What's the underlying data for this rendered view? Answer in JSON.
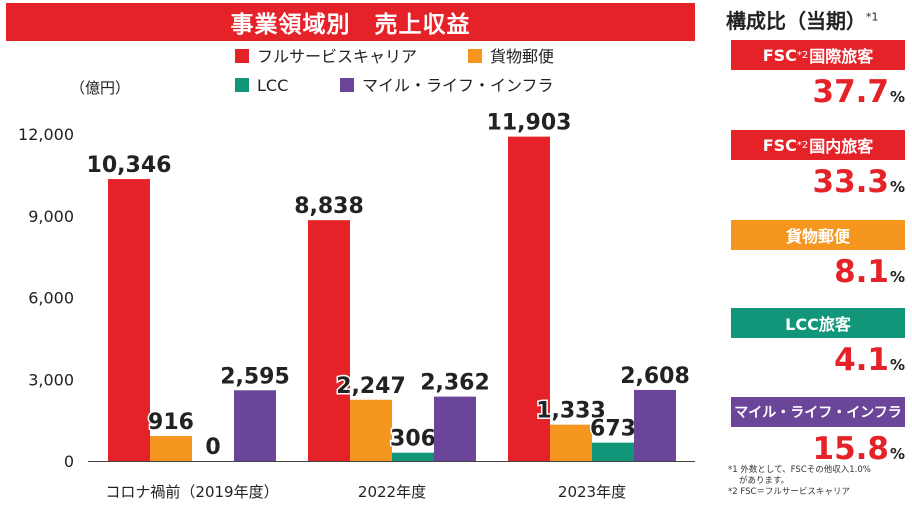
{
  "chart_data": {
    "type": "bar",
    "title": "事業領域別　売上収益",
    "ylabel": "（億円）",
    "ylim": [
      0,
      12000
    ],
    "yticks": [
      "0",
      "3,000",
      "6,000",
      "9,000",
      "12,000"
    ],
    "yticks_values": [
      0,
      3000,
      6000,
      9000,
      12000
    ],
    "categories": [
      "コロナ禍前（2019年度）",
      "2022年度",
      "2023年度"
    ],
    "legend_position": "top",
    "grid": false,
    "series": [
      {
        "name": "フルサービスキャリア",
        "color": "#e62229",
        "values": [
          10346,
          8838,
          11903
        ],
        "labels": [
          "10,346",
          "8,838",
          "11,903"
        ]
      },
      {
        "name": "貨物郵便",
        "color": "#f5961e",
        "values": [
          916,
          2247,
          1333
        ],
        "labels": [
          "916",
          "2,247",
          "1,333"
        ]
      },
      {
        "name": "LCC",
        "color": "#12967a",
        "values": [
          0,
          306,
          673
        ],
        "labels": [
          "0",
          "306",
          "673"
        ]
      },
      {
        "name": "マイル・ライフ・インフラ",
        "color": "#6b4698",
        "values": [
          2595,
          2362,
          2608
        ],
        "labels": [
          "2,595",
          "2,362",
          "2,608"
        ]
      }
    ]
  },
  "composition": {
    "title": "構成比（当期）",
    "title_note": "*1",
    "items": [
      {
        "label_pre": "FSC",
        "label_sup": "*2",
        "label_post": "国際旅客",
        "value": "37.7",
        "unit": "%",
        "color": "#e62229"
      },
      {
        "label_pre": "FSC",
        "label_sup": "*2",
        "label_post": "国内旅客",
        "value": "33.3",
        "unit": "%",
        "color": "#e62229"
      },
      {
        "label_pre": "貨物郵便",
        "label_sup": "",
        "label_post": "",
        "value": "8.1",
        "unit": "%",
        "color": "#f5961e"
      },
      {
        "label_pre": "LCC旅客",
        "label_sup": "",
        "label_post": "",
        "value": "4.1",
        "unit": "%",
        "color": "#12967a"
      },
      {
        "label_pre": "マイル・ライフ・インフラ",
        "label_sup": "",
        "label_post": "",
        "value": "15.8",
        "unit": "%",
        "color": "#6b4698"
      }
    ],
    "notes": [
      "*1 外数として、FSCその他収入1.0%",
      "があります。",
      "*2 FSC＝フルサービスキャリア"
    ]
  }
}
